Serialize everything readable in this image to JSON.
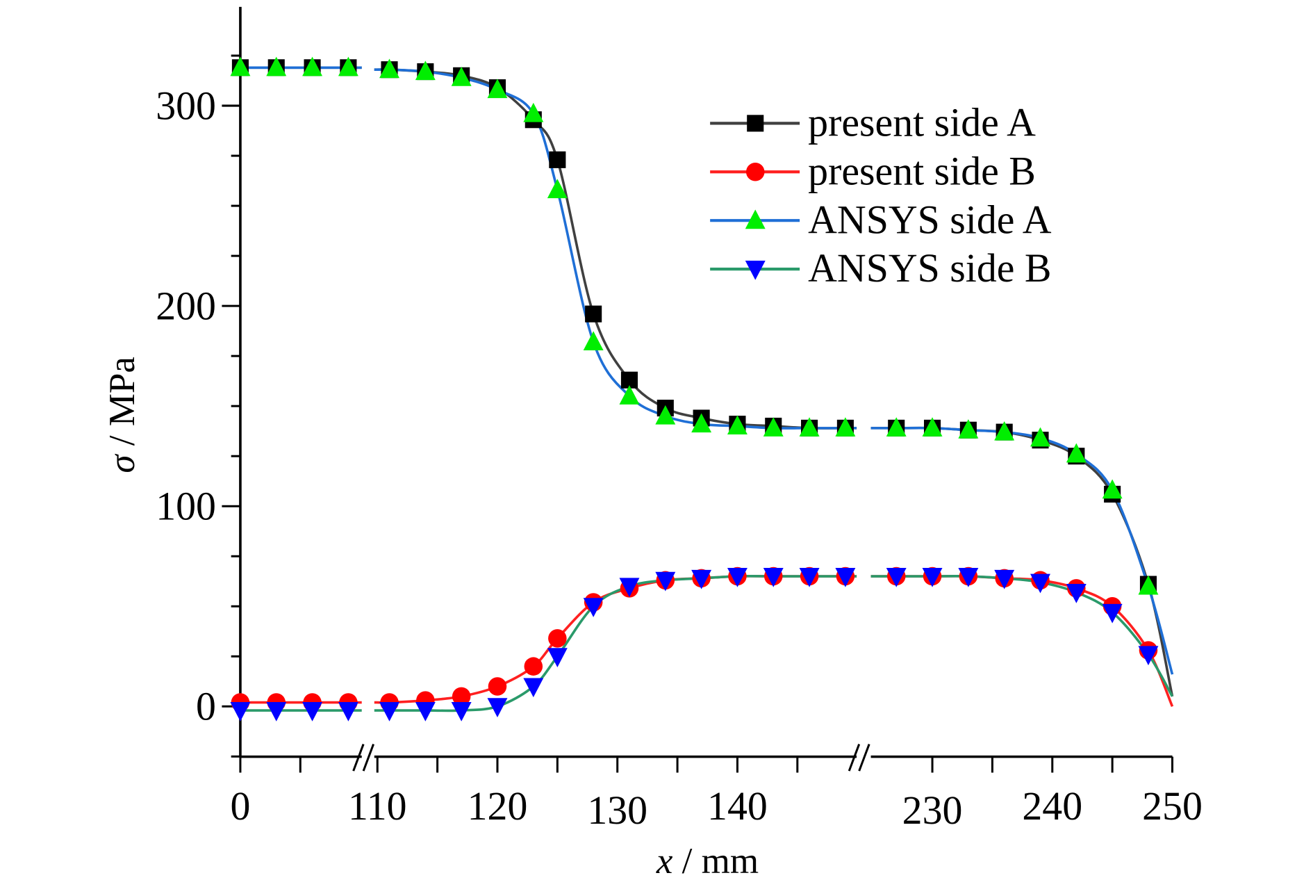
{
  "chart_data": {
    "type": "line",
    "xlabel_var": "x",
    "xlabel_unit": " / mm",
    "ylabel_var": "σ",
    "ylabel_unit": " / MPa",
    "ylim": [
      -25,
      349
    ],
    "x_segments": [
      [
        0,
        10
      ],
      [
        109,
        151
      ],
      [
        225,
        250
      ]
    ],
    "xticks": [
      "0",
      "110",
      "120",
      "130",
      "140",
      "230",
      "240",
      "250"
    ],
    "xtick_values": [
      0,
      110,
      120,
      130,
      140,
      230,
      240,
      250
    ],
    "yticks": [
      "0",
      "100",
      "200",
      "300"
    ],
    "ytick_values": [
      0,
      100,
      200,
      300
    ],
    "legend_position": "top-right",
    "x": [
      0,
      3,
      6,
      9,
      111,
      114,
      117,
      120,
      123,
      125,
      128,
      131,
      134,
      137,
      140,
      143,
      146,
      149,
      227,
      230,
      233,
      236,
      239,
      242,
      245,
      248
    ],
    "series": [
      {
        "name": "present side A",
        "marker": "square",
        "marker_color": "#000000",
        "line_color": "#404040",
        "values": [
          319,
          319,
          319,
          319,
          318,
          317,
          315,
          309,
          293,
          273,
          196,
          163,
          149,
          144,
          141,
          140,
          139,
          139,
          139,
          139,
          138,
          137,
          133,
          125,
          106,
          61
        ],
        "end_value": 5
      },
      {
        "name": "present side B",
        "marker": "circle",
        "marker_color": "#ff0000",
        "line_color": "#ff2020",
        "values": [
          2,
          2,
          2,
          2,
          2,
          3,
          5,
          10,
          20,
          34,
          52,
          59,
          63,
          64,
          65,
          65,
          65,
          65,
          65,
          65,
          65,
          64,
          63,
          59,
          50,
          28
        ],
        "end_value": 0
      },
      {
        "name": "ANSYS side A",
        "marker": "triangle-up",
        "marker_color": "#00ee00",
        "line_color": "#1f6fd6",
        "values": [
          319,
          319,
          319,
          319,
          318,
          317,
          314,
          308,
          296,
          258,
          182,
          155,
          145,
          141,
          140,
          139,
          139,
          139,
          139,
          139,
          138,
          137,
          134,
          126,
          108,
          60
        ],
        "end_value": 16
      },
      {
        "name": "ANSYS side B",
        "marker": "triangle-down",
        "marker_color": "#0000ff",
        "line_color": "#2a9a6a",
        "values": [
          -2,
          -2,
          -2,
          -2,
          -2,
          -2,
          -2,
          0,
          10,
          25,
          50,
          60,
          63,
          64,
          65,
          65,
          65,
          65,
          65,
          65,
          65,
          64,
          62,
          57,
          47,
          26
        ],
        "end_value": 5
      }
    ]
  }
}
